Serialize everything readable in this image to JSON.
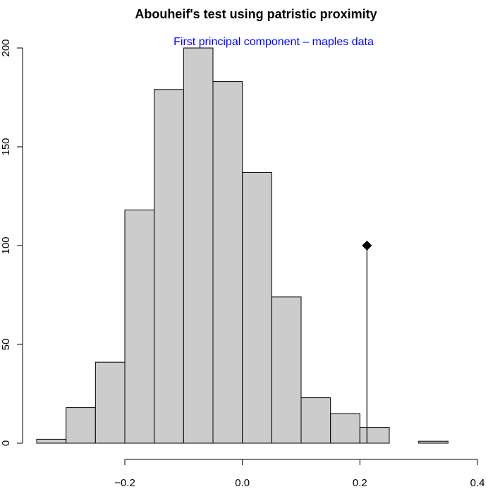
{
  "chart_data": {
    "type": "bar",
    "title": "Abouheif's test using patristic proximity",
    "subtitle": "First principal component – maples data",
    "subtitle_color": "#0000ff",
    "bar_color": "#cccccc",
    "bins": [
      {
        "start": -0.35,
        "end": -0.3,
        "count": 2
      },
      {
        "start": -0.3,
        "end": -0.25,
        "count": 18
      },
      {
        "start": -0.25,
        "end": -0.2,
        "count": 41
      },
      {
        "start": -0.2,
        "end": -0.15,
        "count": 118
      },
      {
        "start": -0.15,
        "end": -0.1,
        "count": 179
      },
      {
        "start": -0.1,
        "end": -0.05,
        "count": 200
      },
      {
        "start": -0.05,
        "end": 0.0,
        "count": 183
      },
      {
        "start": 0.0,
        "end": 0.05,
        "count": 137
      },
      {
        "start": 0.05,
        "end": 0.1,
        "count": 74
      },
      {
        "start": 0.1,
        "end": 0.15,
        "count": 23
      },
      {
        "start": 0.15,
        "end": 0.2,
        "count": 15
      },
      {
        "start": 0.2,
        "end": 0.25,
        "count": 8
      },
      {
        "start": 0.25,
        "end": 0.3,
        "count": 0
      },
      {
        "start": 0.3,
        "end": 0.35,
        "count": 1
      }
    ],
    "observed": {
      "x": 0.212,
      "y": 100
    },
    "xlim": [
      -0.35,
      0.4
    ],
    "ylim": [
      0,
      200
    ],
    "x_ticks": [
      {
        "value": -0.2,
        "label": "−0.2"
      },
      {
        "value": 0.0,
        "label": "0.0"
      },
      {
        "value": 0.2,
        "label": "0.2"
      },
      {
        "value": 0.4,
        "label": "0.4"
      }
    ],
    "y_ticks": [
      {
        "value": 0,
        "label": "0"
      },
      {
        "value": 50,
        "label": "50"
      },
      {
        "value": 100,
        "label": "100"
      },
      {
        "value": 150,
        "label": "150"
      },
      {
        "value": 200,
        "label": "200"
      }
    ],
    "grid": false
  }
}
